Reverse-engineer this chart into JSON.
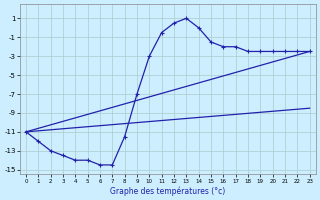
{
  "xlabel": "Graphe des températures (°c)",
  "background_color": "#cceeff",
  "grid_color": "#aacccc",
  "line_color": "#2222aa",
  "xlim": [
    -0.5,
    23.5
  ],
  "ylim": [
    -15.5,
    2.5
  ],
  "xticks": [
    0,
    1,
    2,
    3,
    4,
    5,
    6,
    7,
    8,
    9,
    10,
    11,
    12,
    13,
    14,
    15,
    16,
    17,
    18,
    19,
    20,
    21,
    22,
    23
  ],
  "yticks": [
    1,
    -1,
    -3,
    -5,
    -7,
    -9,
    -11,
    -13,
    -15
  ],
  "line1_x": [
    0,
    1,
    2,
    3,
    4,
    5,
    6,
    7,
    8,
    9,
    10,
    11,
    12,
    13,
    14,
    15,
    16,
    17,
    18,
    19,
    20,
    21,
    22,
    23
  ],
  "line1_y": [
    -11,
    -12,
    -13,
    -13.5,
    -14,
    -14,
    -14.5,
    -14.5,
    -11.5,
    -7,
    -3,
    -0.5,
    0.5,
    1,
    0,
    -1.5,
    -2,
    -2,
    -2.5,
    -2.5,
    -2.5,
    -2.5,
    -2.5,
    -2.5
  ],
  "line2_x": [
    0,
    23
  ],
  "line2_y": [
    -11,
    -2.5
  ],
  "line3_x": [
    0,
    23
  ],
  "line3_y": [
    -11,
    -8.5
  ],
  "line1_lw": 0.9,
  "line2_lw": 0.9,
  "line3_lw": 0.9,
  "marker_size": 2.5
}
